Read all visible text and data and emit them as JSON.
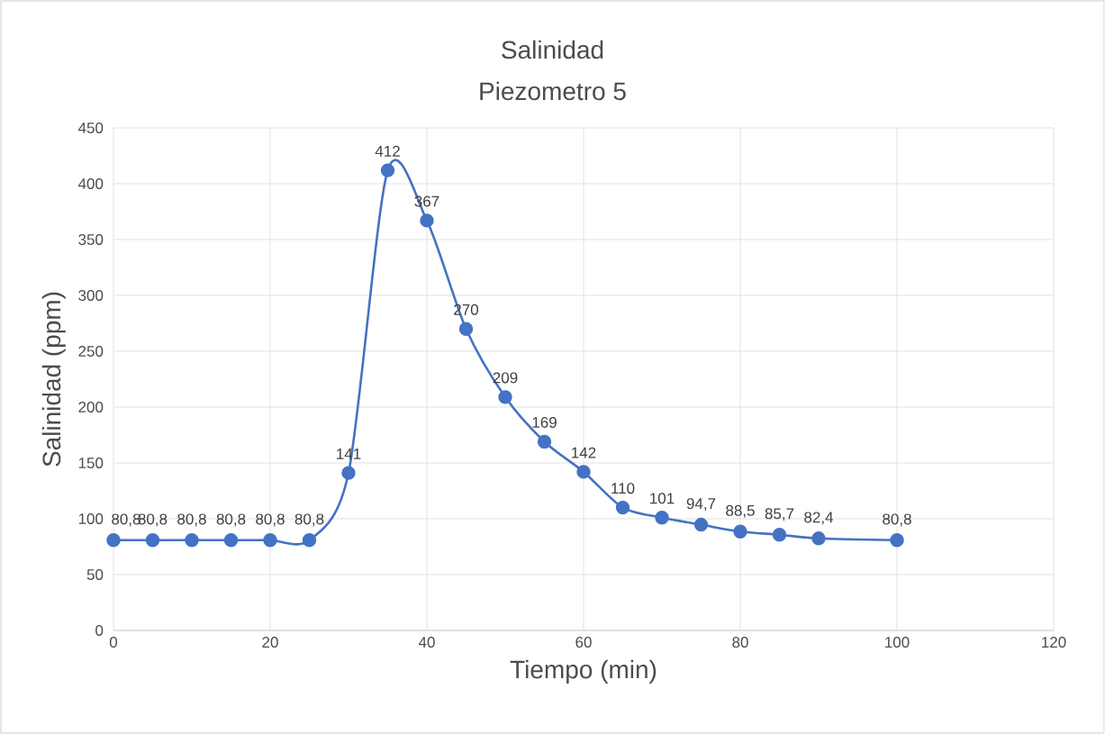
{
  "chart_data": {
    "type": "line",
    "title": "Salinidad",
    "subtitle": "Piezometro 5",
    "xlabel": "Tiempo (min)",
    "ylabel": "Salinidad (ppm)",
    "x": [
      0,
      5,
      10,
      15,
      20,
      25,
      30,
      35,
      40,
      45,
      50,
      55,
      60,
      65,
      70,
      75,
      80,
      85,
      90,
      100
    ],
    "series": [
      {
        "color": "#4472c4",
        "values": [
          80.8,
          80.8,
          80.8,
          80.8,
          80.8,
          80.8,
          141,
          412,
          367,
          270,
          209,
          169,
          142,
          110,
          101,
          94.7,
          88.5,
          85.7,
          82.4,
          80.8
        ],
        "value_labels": [
          "80,8",
          "80,8",
          "80,8",
          "80,8",
          "80,8",
          "80,8",
          "141",
          "412",
          "367",
          "270",
          "209",
          "169",
          "142",
          "110",
          "101",
          "94,7",
          "88,5",
          "85,7",
          "82,4",
          "80,8"
        ]
      }
    ],
    "xlim": [
      0,
      120
    ],
    "xticks": [
      0,
      20,
      40,
      60,
      80,
      100,
      120
    ],
    "ylim": [
      0,
      450
    ],
    "yticks": [
      0,
      50,
      100,
      150,
      200,
      250,
      300,
      350,
      400,
      450
    ],
    "grid": true,
    "marker": "circle",
    "line_style": "solid"
  }
}
